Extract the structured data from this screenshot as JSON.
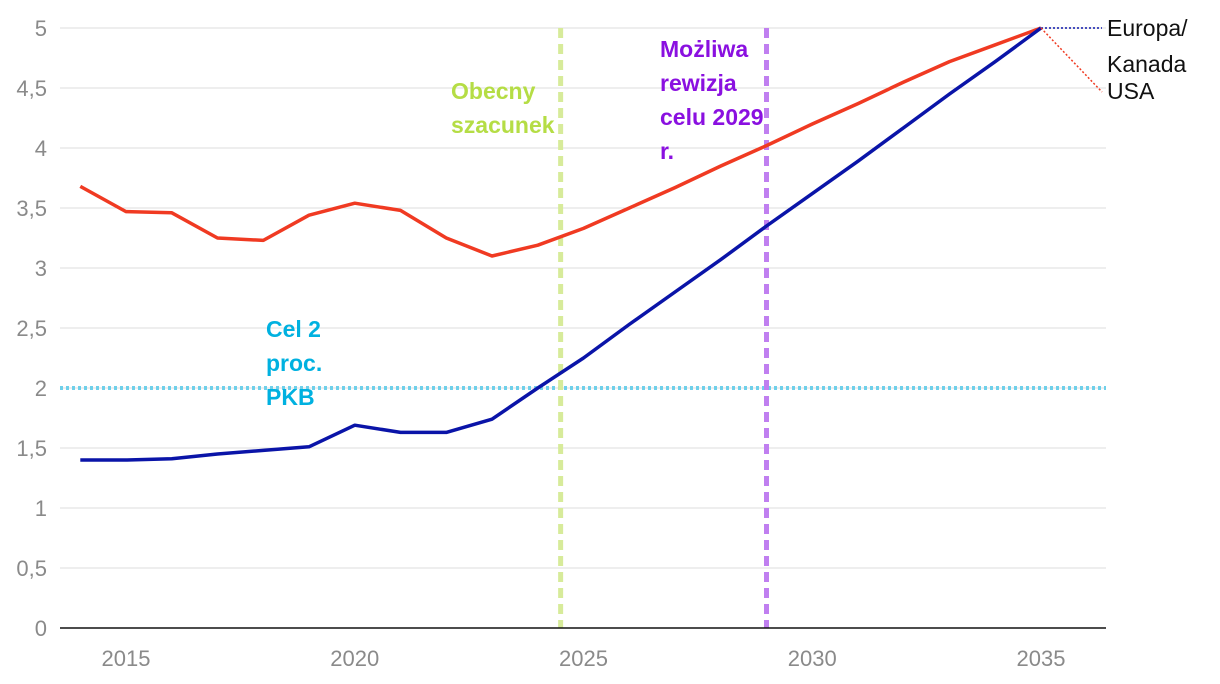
{
  "chart_data": {
    "type": "line",
    "title": "",
    "xlabel": "",
    "ylabel": "",
    "xlim": [
      2013.6,
      2036.5
    ],
    "ylim": [
      0,
      5
    ],
    "grid": true,
    "x_ticks": [
      "2015",
      "2020",
      "2025",
      "2030",
      "2035"
    ],
    "y_ticks": [
      "0",
      "0,5",
      "1",
      "1,5",
      "2",
      "2,5",
      "3",
      "3,5",
      "4",
      "4,5",
      "5"
    ],
    "x": [
      2014,
      2015,
      2016,
      2017,
      2018,
      2019,
      2020,
      2021,
      2022,
      2023,
      2024,
      2025,
      2026,
      2027,
      2028,
      2029,
      2030,
      2031,
      2032,
      2033,
      2034,
      2035
    ],
    "series": [
      {
        "name": "USA",
        "color": "#f03a22",
        "values": [
          3.68,
          3.47,
          3.46,
          3.25,
          3.23,
          3.44,
          3.54,
          3.48,
          3.25,
          3.1,
          3.19,
          3.33,
          3.5,
          3.67,
          3.85,
          4.02,
          4.2,
          4.37,
          4.55,
          4.72,
          4.86,
          5.0
        ]
      },
      {
        "name": "Europa/ Kanada",
        "color": "#0a14a8",
        "values": [
          1.4,
          1.4,
          1.41,
          1.45,
          1.48,
          1.51,
          1.69,
          1.63,
          1.63,
          1.74,
          2.0,
          2.25,
          2.53,
          2.8,
          3.07,
          3.35,
          3.62,
          3.89,
          4.17,
          4.45,
          4.72,
          5.0
        ]
      }
    ],
    "legend": [
      {
        "label_line1": "Europa/",
        "label_line2": "Kanada",
        "color": "#0a14a8"
      },
      {
        "label_line1": "USA",
        "color": "#f03a22"
      }
    ],
    "reference_lines": [
      {
        "orientation": "horizontal",
        "value": 2,
        "color": "#6fd0ea",
        "label_lines": [
          "Cel 2",
          "proc.",
          "PKB"
        ],
        "label_color": "#00b1e0"
      },
      {
        "orientation": "vertical",
        "value": 2024.5,
        "color": "#d7eb9a",
        "label_lines": [
          "Obecny",
          "szacunek"
        ],
        "label_color": "#b5dd45"
      },
      {
        "orientation": "vertical",
        "value": 2029,
        "color": "#c07ff0",
        "label_lines": [
          "Możliwa",
          "rewizja",
          "celu 2029",
          "r."
        ],
        "label_color": "#8a10e0"
      }
    ]
  }
}
